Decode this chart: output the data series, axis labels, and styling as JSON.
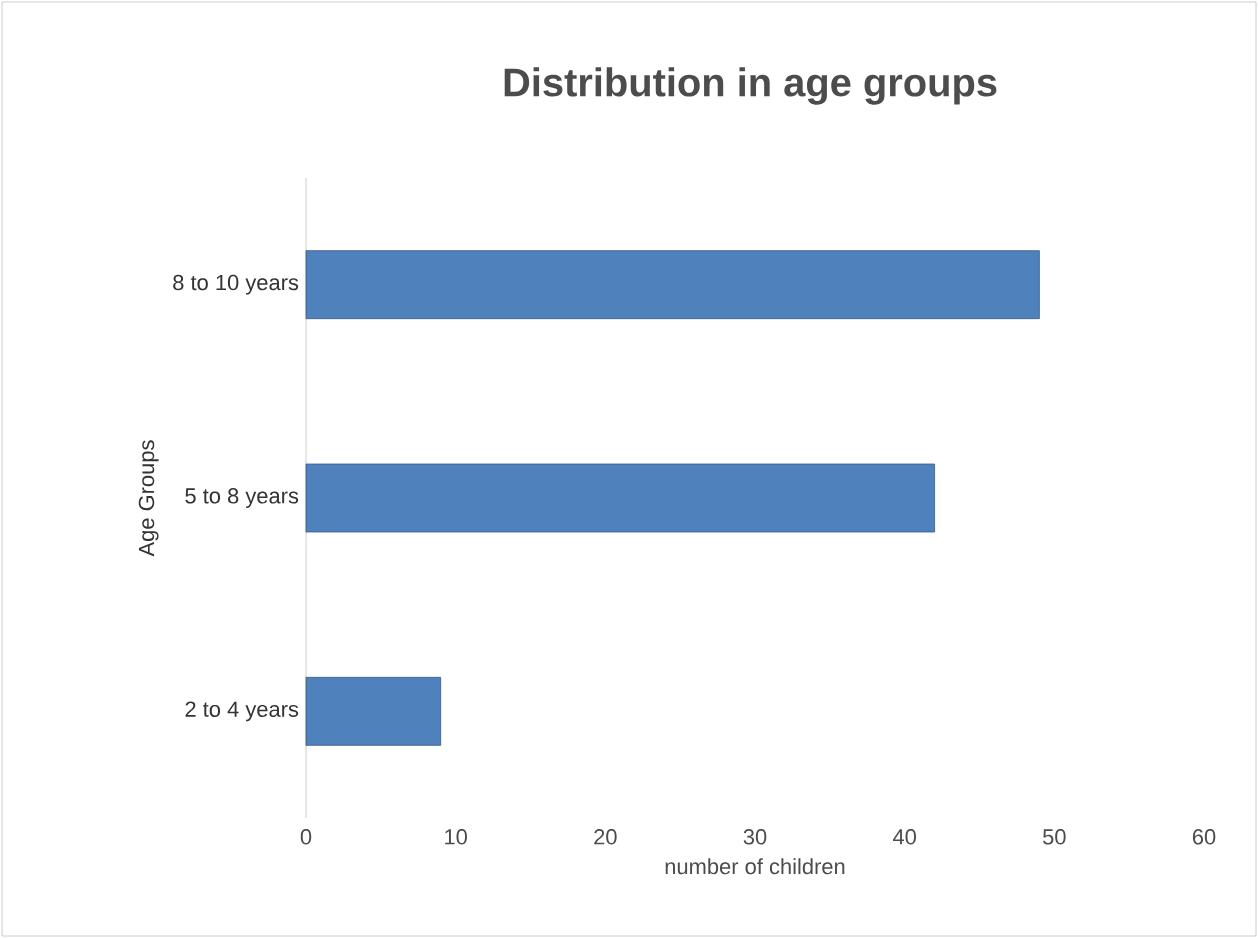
{
  "chart_data": {
    "type": "bar",
    "orientation": "horizontal",
    "title": "Distribution in age groups",
    "xlabel": "number of children",
    "ylabel": "Age Groups",
    "categories": [
      "8 to 10 years",
      "5 to 8 years",
      "2 to 4 years"
    ],
    "values": [
      49,
      42,
      9
    ],
    "color": "#4f81bd",
    "xlim": [
      0,
      60
    ],
    "xticks": [
      0,
      10,
      20,
      30,
      40,
      50,
      60
    ]
  }
}
